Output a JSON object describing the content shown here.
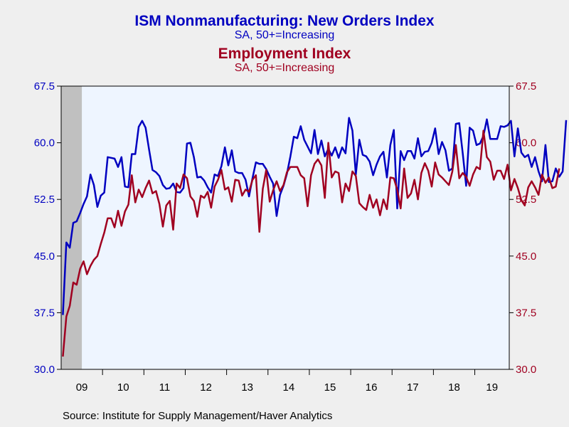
{
  "chart_data": {
    "type": "line",
    "title": "ISM Nonmanufacturing: New Orders Index",
    "subtitle": "SA, 50+=Increasing",
    "title2": "Employment Index",
    "subtitle2": "SA, 50+=Increasing",
    "source": "Source:  Institute for Supply Management/Haver Analytics",
    "x_start": "2009-01",
    "x_end": "2019-10",
    "x_tick_labels": [
      "09",
      "10",
      "11",
      "12",
      "13",
      "14",
      "15",
      "16",
      "17",
      "18",
      "19"
    ],
    "y_left": {
      "ticks": [
        "30.0",
        "37.5",
        "45.0",
        "52.5",
        "60.0",
        "67.5"
      ],
      "min": 30,
      "max": 67.5,
      "color": "#0000c0"
    },
    "y_right": {
      "ticks": [
        "30.0",
        "37.5",
        "45.0",
        "52.5",
        "60.0",
        "67.5"
      ],
      "min": 30,
      "max": 67.5,
      "color": "#a00020"
    },
    "shaded_recession": {
      "start": "2009-01",
      "end": "2009-06"
    },
    "grid": false,
    "series": [
      {
        "name": "ISM Nonmanufacturing: New Orders Index",
        "axis": "left",
        "color": "#0000c0",
        "values": [
          37.2,
          46.8,
          46.1,
          49.4,
          49.6,
          50.7,
          51.9,
          52.9,
          55.8,
          54.4,
          51.5,
          53.0,
          53.4,
          58.1,
          58.0,
          57.9,
          56.8,
          58.1,
          54.2,
          54.1,
          58.5,
          58.5,
          62.1,
          62.9,
          62.0,
          59.1,
          56.4,
          56.1,
          55.6,
          54.4,
          53.9,
          54.0,
          54.6,
          53.5,
          53.4,
          54.0,
          59.9,
          60.0,
          58.1,
          55.4,
          55.5,
          55.0,
          54.1,
          53.4,
          55.8,
          55.6,
          56.9,
          59.4,
          57.0,
          59.0,
          56.2,
          56.0,
          56.0,
          55.1,
          52.9,
          55.3,
          57.4,
          57.2,
          57.2,
          56.5,
          55.5,
          54.6,
          50.3,
          53.1,
          54.3,
          55.9,
          58.2,
          60.8,
          60.6,
          62.2,
          60.4,
          59.5,
          58.6,
          61.7,
          58.5,
          60.3,
          58.2,
          59.2,
          58.3,
          59.4,
          58.0,
          59.4,
          58.6,
          63.3,
          61.6,
          55.8,
          60.4,
          58.4,
          58.2,
          57.5,
          55.7,
          57.1,
          58.2,
          58.8,
          55.4,
          59.7,
          61.7,
          51.3,
          58.9,
          57.7,
          58.9,
          58.9,
          57.9,
          60.6,
          58.2,
          58.8,
          58.9,
          60.0,
          61.9,
          58.5,
          60.1,
          59.0,
          56.3,
          56.6,
          62.5,
          62.6,
          58.6,
          54.3,
          62.0,
          61.6,
          59.7,
          59.9,
          60.9,
          63.1,
          60.5,
          60.5,
          60.5,
          62.2,
          62.1,
          62.3,
          62.9,
          58.2,
          61.9,
          58.7,
          58.1,
          58.4,
          56.8,
          58.1,
          56.2,
          54.9,
          59.7,
          54.8,
          54.9,
          56.6,
          55.5,
          56.2,
          63.0
        ]
      },
      {
        "name": "Employment Index",
        "axis": "right",
        "color": "#a00020",
        "values": [
          31.7,
          37.0,
          38.4,
          41.5,
          41.2,
          43.3,
          44.3,
          42.6,
          43.7,
          44.5,
          45.0,
          46.6,
          48.1,
          50.0,
          50.0,
          48.8,
          51.0,
          49.0,
          50.9,
          51.8,
          55.7,
          52.1,
          53.8,
          52.8,
          54.0,
          55.0,
          53.3,
          53.6,
          51.9,
          48.9,
          51.7,
          52.3,
          48.5,
          54.6,
          54.0,
          55.8,
          55.3,
          52.9,
          52.3,
          50.2,
          53.0,
          52.7,
          53.5,
          51.4,
          54.2,
          55.1,
          56.4,
          53.8,
          54.1,
          52.2,
          55.1,
          55.0,
          53.0,
          53.8,
          53.5,
          55.1,
          55.7,
          48.2,
          53.9,
          56.4,
          52.2,
          53.7,
          54.9,
          53.6,
          54.4,
          56.1,
          56.8,
          56.8,
          56.8,
          55.7,
          55.3,
          51.6,
          55.7,
          57.2,
          57.8,
          57.0,
          52.7,
          60.0,
          55.4,
          56.2,
          56.0,
          52.1,
          54.6,
          53.6,
          56.2,
          55.6,
          52.0,
          51.5,
          51.1,
          53.1,
          51.4,
          52.5,
          50.4,
          52.5,
          51.2,
          55.4,
          55.3,
          53.8,
          51.3,
          56.6,
          52.7,
          53.3,
          55.1,
          52.5,
          56.0,
          57.3,
          56.3,
          54.2,
          57.4,
          55.8,
          55.4,
          54.9,
          54.4,
          56.2,
          59.7,
          55.3,
          56.0,
          55.5,
          54.3,
          55.8,
          56.8,
          56.5,
          61.6,
          58.1,
          57.5,
          55.1,
          56.3,
          56.3,
          55.2,
          57.1,
          53.7,
          55.2,
          54.0,
          52.4,
          51.7,
          54.1,
          54.9,
          54.1,
          53.1,
          55.8,
          54.7,
          55.4,
          54.0,
          54.2,
          56.6
        ]
      }
    ]
  }
}
